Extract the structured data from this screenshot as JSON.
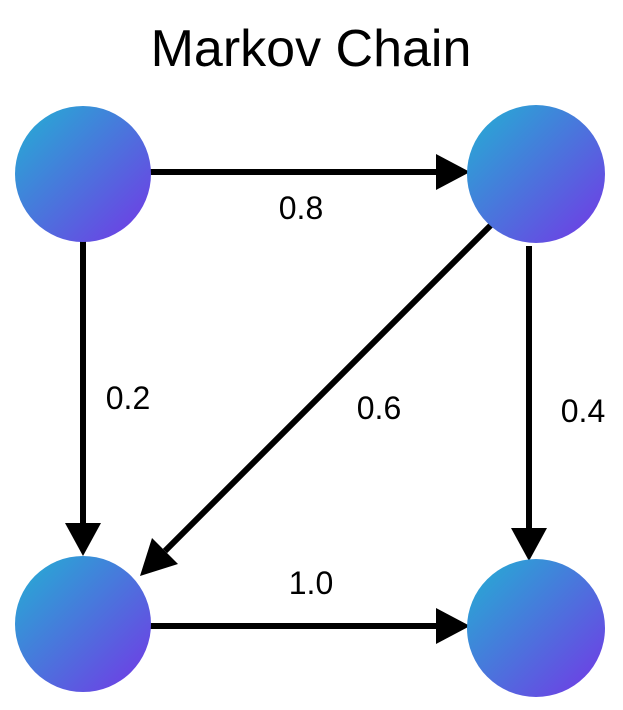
{
  "title": "Markov Chain",
  "colors": {
    "node_gradient_start": "#22b1d3",
    "node_gradient_end": "#7436e6",
    "edge": "#000000",
    "text": "#000000",
    "background": "#ffffff"
  },
  "nodes": [
    {
      "id": "top-left"
    },
    {
      "id": "top-right"
    },
    {
      "id": "bottom-left"
    },
    {
      "id": "bottom-right"
    }
  ],
  "edges": [
    {
      "from": "top-left",
      "to": "top-right",
      "label": "0.8"
    },
    {
      "from": "top-left",
      "to": "bottom-left",
      "label": "0.2"
    },
    {
      "from": "top-right",
      "to": "bottom-left",
      "label": "0.6"
    },
    {
      "from": "top-right",
      "to": "bottom-right",
      "label": "0.4"
    },
    {
      "from": "bottom-left",
      "to": "bottom-right",
      "label": "1.0"
    }
  ]
}
